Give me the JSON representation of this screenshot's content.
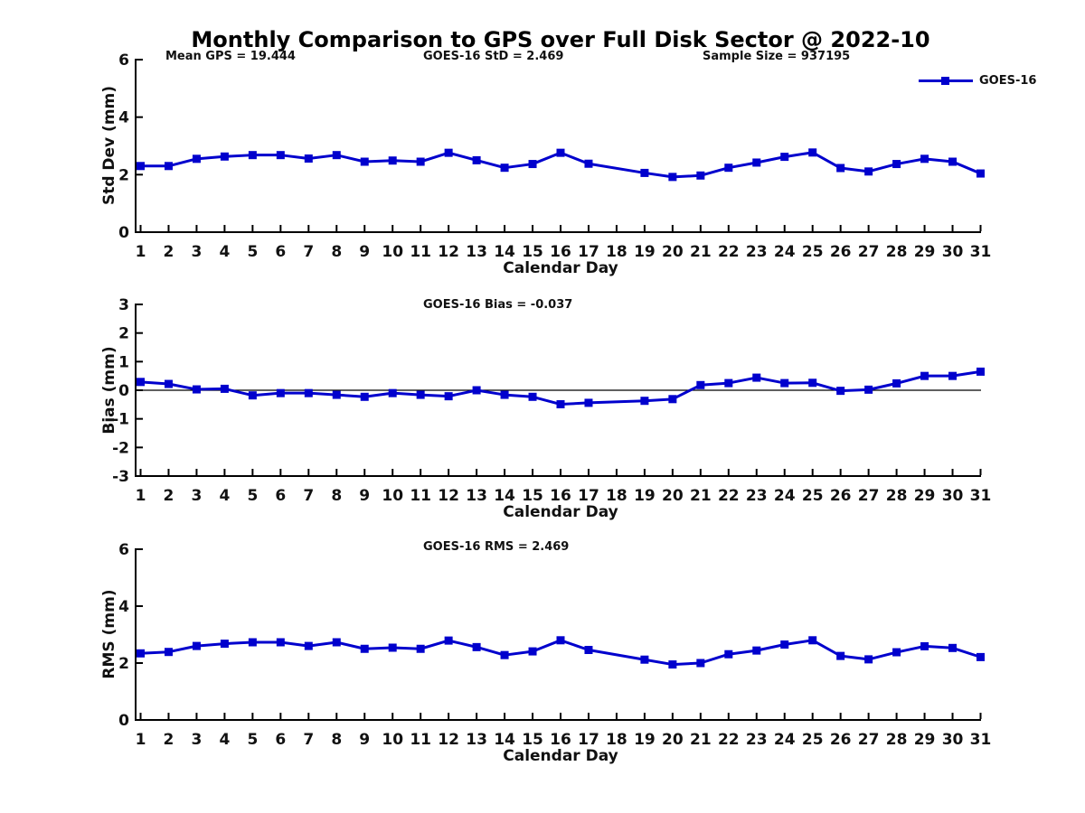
{
  "title": "Monthly Comparison to GPS over Full Disk Sector @ 2022-10",
  "annotations": {
    "mean_gps": "Mean GPS = 19.444",
    "goes16_std": "GOES-16 StD = 2.469",
    "sample_size": "Sample Size = 937195",
    "goes16_bias": "GOES-16 Bias = -0.037",
    "goes16_rms": "GOES-16 RMS = 2.469"
  },
  "legend": {
    "label": "GOES-16",
    "position": "top-right"
  },
  "colors": {
    "line": "#0000CD",
    "marker": "#0000CD",
    "axis": "#000000",
    "text": "#111111",
    "zero_line": "#000000"
  },
  "chart_data": [
    {
      "type": "line",
      "series_name": "GOES-16",
      "title": "",
      "xlabel": "Calendar Day",
      "ylabel": "Std Dev (mm)",
      "ylim": [
        0,
        6
      ],
      "yticks": [
        0,
        2,
        4,
        6
      ],
      "xticks": [
        1,
        2,
        3,
        4,
        5,
        6,
        7,
        8,
        9,
        10,
        11,
        12,
        13,
        14,
        15,
        16,
        17,
        18,
        19,
        20,
        21,
        22,
        23,
        24,
        25,
        26,
        27,
        28,
        29,
        30,
        31
      ],
      "grid": false,
      "zero_line": false,
      "x": [
        1,
        2,
        3,
        4,
        5,
        6,
        7,
        8,
        9,
        10,
        11,
        12,
        13,
        14,
        15,
        16,
        17,
        19,
        20,
        21,
        22,
        23,
        24,
        25,
        26,
        27,
        28,
        29,
        30,
        31
      ],
      "values": [
        2.3,
        2.3,
        2.55,
        2.63,
        2.68,
        2.68,
        2.56,
        2.68,
        2.45,
        2.49,
        2.45,
        2.76,
        2.5,
        2.24,
        2.37,
        2.76,
        2.38,
        2.06,
        1.92,
        1.97,
        2.24,
        2.42,
        2.62,
        2.77,
        2.23,
        2.11,
        2.37,
        2.55,
        2.45,
        2.04
      ],
      "missing_days": [
        18
      ]
    },
    {
      "type": "line",
      "series_name": "GOES-16",
      "title": "",
      "xlabel": "Calendar Day",
      "ylabel": "Bias (mm)",
      "ylim": [
        -3,
        3
      ],
      "yticks": [
        -3,
        -2,
        -1,
        0,
        1,
        2,
        3
      ],
      "xticks": [
        1,
        2,
        3,
        4,
        5,
        6,
        7,
        8,
        9,
        10,
        11,
        12,
        13,
        14,
        15,
        16,
        17,
        18,
        19,
        20,
        21,
        22,
        23,
        24,
        25,
        26,
        27,
        28,
        29,
        30,
        31
      ],
      "grid": false,
      "zero_line": true,
      "x": [
        1,
        2,
        3,
        4,
        5,
        6,
        7,
        8,
        9,
        10,
        11,
        12,
        13,
        14,
        15,
        16,
        17,
        19,
        20,
        21,
        22,
        23,
        24,
        25,
        26,
        27,
        28,
        29,
        30,
        31
      ],
      "values": [
        0.29,
        0.22,
        0.03,
        0.05,
        -0.18,
        -0.1,
        -0.1,
        -0.16,
        -0.23,
        -0.1,
        -0.16,
        -0.21,
        0.0,
        -0.16,
        -0.23,
        -0.49,
        -0.44,
        -0.37,
        -0.31,
        0.18,
        0.25,
        0.44,
        0.25,
        0.26,
        -0.02,
        0.02,
        0.24,
        0.5,
        0.5,
        0.65
      ],
      "missing_days": [
        18
      ]
    },
    {
      "type": "line",
      "series_name": "GOES-16",
      "title": "",
      "xlabel": "Calendar Day",
      "ylabel": "RMS (mm)",
      "ylim": [
        0,
        6
      ],
      "yticks": [
        0,
        2,
        4,
        6
      ],
      "xticks": [
        1,
        2,
        3,
        4,
        5,
        6,
        7,
        8,
        9,
        10,
        11,
        12,
        13,
        14,
        15,
        16,
        17,
        18,
        19,
        20,
        21,
        22,
        23,
        24,
        25,
        26,
        27,
        28,
        29,
        30,
        31
      ],
      "grid": false,
      "zero_line": false,
      "x": [
        1,
        2,
        3,
        4,
        5,
        6,
        7,
        8,
        9,
        10,
        11,
        12,
        13,
        14,
        15,
        16,
        17,
        19,
        20,
        21,
        22,
        23,
        24,
        25,
        26,
        27,
        28,
        29,
        30,
        31
      ],
      "values": [
        2.34,
        2.39,
        2.6,
        2.68,
        2.73,
        2.73,
        2.6,
        2.73,
        2.5,
        2.54,
        2.5,
        2.79,
        2.56,
        2.28,
        2.41,
        2.8,
        2.46,
        2.12,
        1.95,
        2.0,
        2.31,
        2.44,
        2.65,
        2.8,
        2.25,
        2.13,
        2.38,
        2.59,
        2.53,
        2.21
      ],
      "missing_days": [
        18
      ]
    }
  ]
}
